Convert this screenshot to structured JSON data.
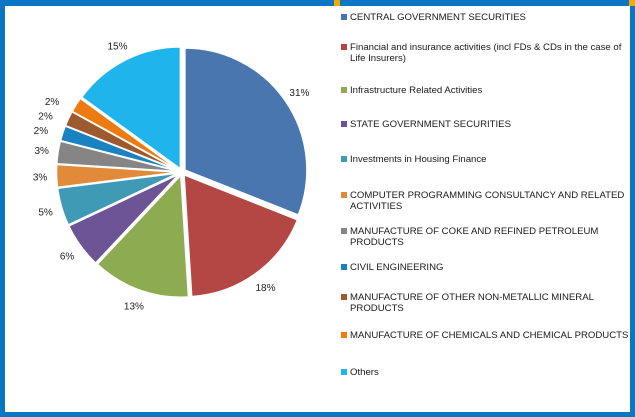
{
  "chart_data": {
    "type": "pie",
    "title": "",
    "legend_position": "right",
    "slices": [
      {
        "label": "CENTRAL GOVERNMENT SECURITIES",
        "value": 31,
        "value_label": "31%",
        "color": "#4a76b0"
      },
      {
        "label": "Financial and insurance activities (incl FDs & CDs in the case of Life Insurers)",
        "value": 18,
        "value_label": "18%",
        "color": "#b44644"
      },
      {
        "label": "Infrastructure Related Activities",
        "value": 13,
        "value_label": "13%",
        "color": "#8dac52"
      },
      {
        "label": "STATE GOVERNMENT SECURITIES",
        "value": 6,
        "value_label": "6%",
        "color": "#6d5496"
      },
      {
        "label": "Investments in Housing Finance",
        "value": 5,
        "value_label": "5%",
        "color": "#3f9ab5"
      },
      {
        "label": "COMPUTER PROGRAMMING  CONSULTANCY AND RELATED ACTIVITIES",
        "value": 3,
        "value_label": "3%",
        "color": "#e08a3a"
      },
      {
        "label": "MANUFACTURE OF COKE AND REFINED PETROLEUM PRODUCTS",
        "value": 3,
        "value_label": "3%",
        "color": "#858585"
      },
      {
        "label": "CIVIL ENGINEERING",
        "value": 2,
        "value_label": "2%",
        "color": "#1a82c0"
      },
      {
        "label": "MANUFACTURE OF OTHER NON-METALLIC MINERAL PRODUCTS",
        "value": 2,
        "value_label": "2%",
        "color": "#9c5a2e"
      },
      {
        "label": "MANUFACTURE OF CHEMICALS AND CHEMICAL PRODUCTS",
        "value": 2,
        "value_label": "2%",
        "color": "#ee7a12"
      },
      {
        "label": "Others",
        "value": 15,
        "value_label": "15%",
        "color": "#1fb4ec"
      }
    ]
  }
}
